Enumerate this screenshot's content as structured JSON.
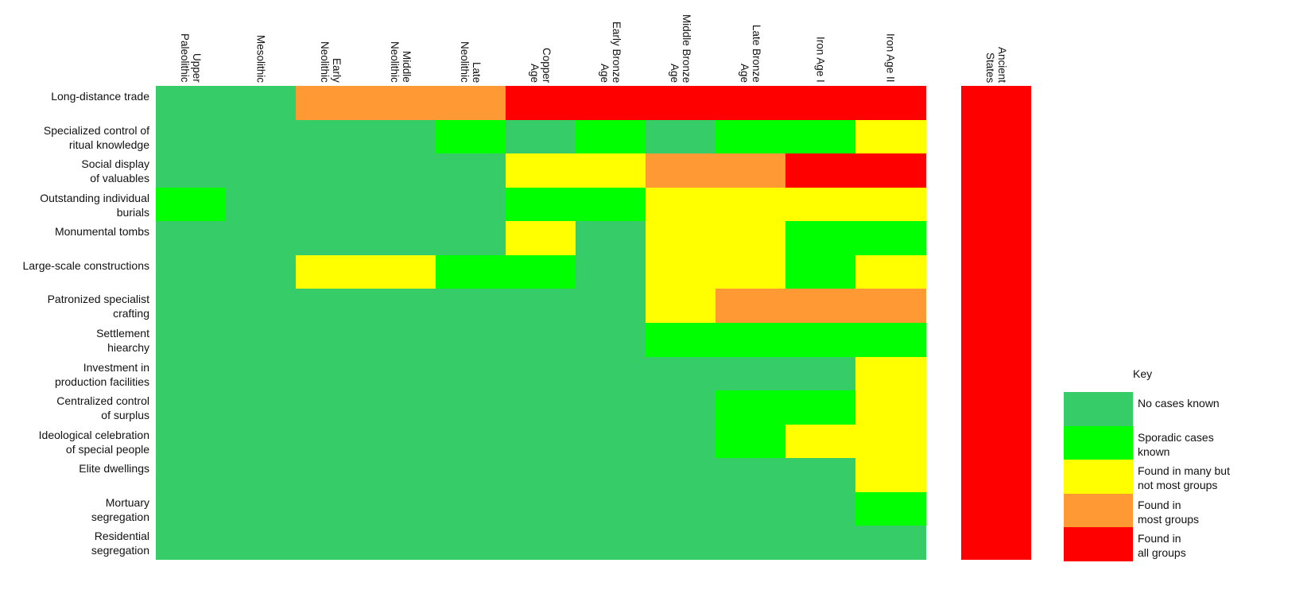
{
  "chart_data": {
    "type": "heatmap",
    "title": "",
    "columns": [
      "Upper\nPaleolithic",
      "Mesolithic",
      "Early\nNeolithic",
      "Middle\nNeolithic",
      "Late\nNeolithic",
      "Copper\nAge",
      "Early Bronze\nAge",
      "Middle Bronze\nAge",
      "Late Bronze\nAge",
      "Iron Age I",
      "Iron Age II"
    ],
    "extra_column": "Ancient\nStates",
    "rows": [
      "Long-distance trade",
      "Specialized control of\nritual knowledge",
      "Social display\nof valuables",
      "Outstanding individual\nburials",
      "Monumental tombs",
      "Large-scale constructions",
      "Patronized specialist\ncrafting",
      "Settlement\nhiearchy",
      "Investment in\nproduction facilities",
      "Centralized control\nof surplus",
      "Ideological celebration\nof special people",
      "Elite dwellings",
      "Mortuary\nsegregation",
      "Residential\nsegregation"
    ],
    "levels": {
      "0": {
        "label": "No cases known",
        "color": "#36CC68"
      },
      "1": {
        "label": "Sporadic cases\nknown",
        "color": "#00FF00"
      },
      "2": {
        "label": "Found in many but\nnot most groups",
        "color": "#FFFF00"
      },
      "3": {
        "label": "Found in\nmost groups",
        "color": "#FF9933"
      },
      "4": {
        "label": "Found in\nall groups",
        "color": "#FF0000"
      }
    },
    "values": [
      [
        0,
        0,
        3,
        3,
        3,
        4,
        4,
        4,
        4,
        4,
        4
      ],
      [
        0,
        0,
        0,
        0,
        1,
        0,
        1,
        0,
        1,
        1,
        2
      ],
      [
        0,
        0,
        0,
        0,
        0,
        2,
        2,
        3,
        3,
        4,
        4
      ],
      [
        1,
        0,
        0,
        0,
        0,
        1,
        1,
        2,
        2,
        2,
        2
      ],
      [
        0,
        0,
        0,
        0,
        0,
        2,
        0,
        2,
        2,
        1,
        1
      ],
      [
        0,
        0,
        2,
        2,
        1,
        1,
        0,
        2,
        2,
        1,
        2
      ],
      [
        0,
        0,
        0,
        0,
        0,
        0,
        0,
        2,
        3,
        3,
        3
      ],
      [
        0,
        0,
        0,
        0,
        0,
        0,
        0,
        1,
        1,
        1,
        1
      ],
      [
        0,
        0,
        0,
        0,
        0,
        0,
        0,
        0,
        0,
        0,
        2
      ],
      [
        0,
        0,
        0,
        0,
        0,
        0,
        0,
        0,
        1,
        1,
        2
      ],
      [
        0,
        0,
        0,
        0,
        0,
        0,
        0,
        0,
        1,
        2,
        2
      ],
      [
        0,
        0,
        0,
        0,
        0,
        0,
        0,
        0,
        0,
        0,
        2
      ],
      [
        0,
        0,
        0,
        0,
        0,
        0,
        0,
        0,
        0,
        0,
        1
      ],
      [
        0,
        0,
        0,
        0,
        0,
        0,
        0,
        0,
        0,
        0,
        0
      ]
    ],
    "ancient_states_values": [
      4,
      4,
      4,
      4,
      4,
      4,
      4,
      4,
      4,
      4,
      4,
      4,
      4,
      4
    ],
    "legend": {
      "title": "Key",
      "position": "bottom-right",
      "entries": [
        "No cases known",
        "Sporadic cases\nknown",
        "Found in many but\nnot most groups",
        "Found in\nmost groups",
        "Found in\nall groups"
      ]
    }
  }
}
